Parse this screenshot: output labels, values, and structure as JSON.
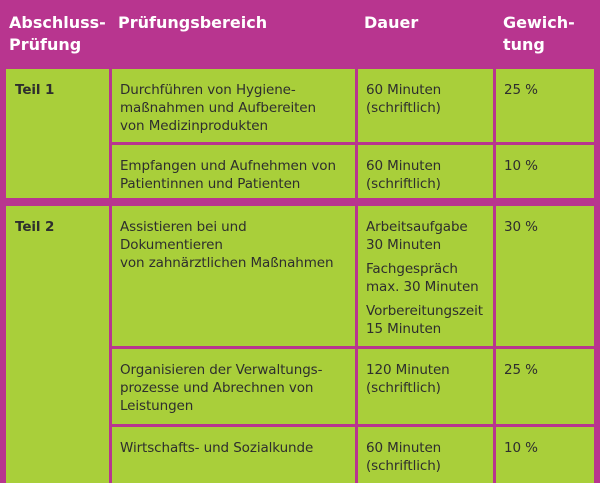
{
  "header": {
    "col_exam": "Abschluss-\nPrüfung",
    "col_area": "Prüfungsbereich",
    "col_duration": "Dauer",
    "col_weight": "Gewich-\ntung"
  },
  "parts": [
    {
      "label": "Teil 1",
      "rows": [
        {
          "area": "Durchführen von Hygiene-\nmaßnahmen und Aufbereiten\nvon Medizinprodukten",
          "duration": [
            "60 Minuten\n(schriftlich)"
          ],
          "weight": "25 %"
        },
        {
          "area": "Empfangen und Aufnehmen von\nPatientinnen und Patienten",
          "duration": [
            "60 Minuten\n(schriftlich)"
          ],
          "weight": "10 %"
        }
      ]
    },
    {
      "label": "Teil 2",
      "rows": [
        {
          "area": "Assistieren bei und Dokumentieren\nvon zahnärztlichen Maßnahmen",
          "duration": [
            "Arbeitsaufgabe\n30 Minuten",
            "Fachgespräch\nmax. 30 Minuten",
            "Vorbereitungszeit\n15 Minuten"
          ],
          "weight": "30 %"
        },
        {
          "area": "Organisieren der Verwaltungs-\nprozesse und Abrechnen von\nLeistungen",
          "duration": [
            "120 Minuten\n(schriftlich)"
          ],
          "weight": "25 %"
        },
        {
          "area": "Wirtschafts- und Sozialkunde",
          "duration": [
            "60 Minuten\n(schriftlich)"
          ],
          "weight": "10 %"
        }
      ]
    }
  ],
  "colors": {
    "header_bg": "#b8358f",
    "cell_bg": "#a9cf3a",
    "text": "#2e2e2e",
    "header_text": "#ffffff"
  }
}
